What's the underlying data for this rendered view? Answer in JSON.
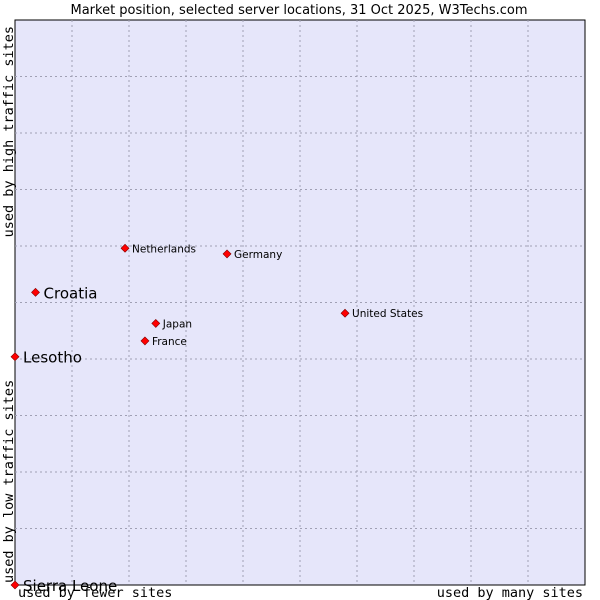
{
  "chart_data": {
    "type": "scatter",
    "title": "Market position, selected server locations, 31 Oct 2025, W3Techs.com",
    "xlabel_low": "used by fewer sites",
    "xlabel_high": "used by many sites",
    "ylabel_low": "used by low traffic sites",
    "ylabel_high": "used by high traffic sites",
    "xlim": [
      0,
      100
    ],
    "ylim": [
      0,
      100
    ],
    "grid": true,
    "colors": {
      "plot_background": "#e6e6fa",
      "grid": "#a0a0b4",
      "point": "#ff0000",
      "point_outline": "#800000"
    },
    "points": [
      {
        "name": "Netherlands",
        "x": 19.3,
        "y": 59.6,
        "emphasis": false
      },
      {
        "name": "Germany",
        "x": 37.2,
        "y": 58.6,
        "emphasis": false
      },
      {
        "name": "Croatia",
        "x": 3.6,
        "y": 51.8,
        "emphasis": true
      },
      {
        "name": "United States",
        "x": 57.9,
        "y": 48.1,
        "emphasis": false
      },
      {
        "name": "Japan",
        "x": 24.7,
        "y": 46.3,
        "emphasis": false
      },
      {
        "name": "France",
        "x": 22.8,
        "y": 43.2,
        "emphasis": false
      },
      {
        "name": "Lesotho",
        "x": 0.0,
        "y": 40.4,
        "emphasis": true
      },
      {
        "name": "Sierra Leone",
        "x": 0.0,
        "y": 0.0,
        "emphasis": true
      }
    ]
  }
}
